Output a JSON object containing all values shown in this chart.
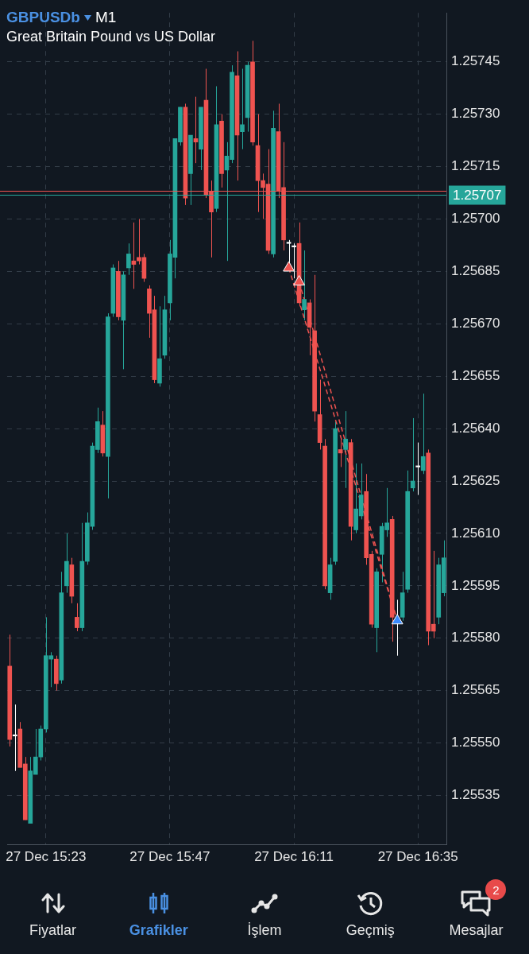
{
  "chart_data": {
    "type": "candlestick",
    "title": "GBPUSDb",
    "subtitle": "Great Britain Pound vs US Dollar",
    "annotations": [
      "M1",
      "Fiyatlar",
      "Grafikler",
      "İşlem",
      "Geçmiş",
      "Mesajlar",
      "2"
    ],
    "categories": [
      null,
      null,
      null,
      null,
      null,
      null,
      null,
      "27 Dec 15:23",
      null,
      null,
      null,
      null,
      null,
      null,
      null,
      null,
      null,
      null,
      null,
      null,
      null,
      null,
      null,
      null,
      null,
      null,
      null,
      null,
      null,
      null,
      null,
      "27 Dec 15:47",
      null,
      null,
      null,
      null,
      null,
      null,
      null,
      null,
      null,
      null,
      null,
      null,
      null,
      null,
      null,
      null,
      null,
      null,
      null,
      null,
      null,
      null,
      null,
      "27 Dec 16:11",
      null,
      null,
      null,
      null,
      null,
      null,
      null,
      null,
      null,
      null,
      null,
      null,
      null,
      null,
      null,
      null,
      null,
      null,
      null,
      null,
      null,
      null,
      null,
      "27 Dec 16:35",
      null,
      null,
      null,
      null,
      null
    ],
    "ohlc": [
      [
        1.25572,
        1.25581,
        1.25549,
        1.25551
      ],
      [
        1.25552,
        1.25561,
        1.25542,
        1.25552
      ],
      [
        1.25554,
        1.25556,
        1.25543,
        1.25543
      ],
      [
        1.25544,
        1.25546,
        1.25528,
        1.25528
      ],
      [
        1.25527,
        1.25546,
        1.25527,
        1.25542
      ],
      [
        1.25541,
        1.25554,
        1.25541,
        1.25546
      ],
      [
        1.25546,
        1.25555,
        1.25545,
        1.25554
      ],
      [
        1.25554,
        1.25586,
        1.25553,
        1.25575
      ],
      [
        1.25574,
        1.25576,
        1.25566,
        1.25575
      ],
      [
        1.25574,
        1.25575,
        1.25565,
        1.25567
      ],
      [
        1.25568,
        1.25599,
        1.25567,
        1.25593
      ],
      [
        1.25595,
        1.2561,
        1.25593,
        1.25602
      ],
      [
        1.25601,
        1.25603,
        1.2559,
        1.25592
      ],
      [
        1.25586,
        1.2559,
        1.25582,
        1.25583
      ],
      [
        1.25583,
        1.25613,
        1.25582,
        1.25602
      ],
      [
        1.25602,
        1.25616,
        1.25601,
        1.25613
      ],
      [
        1.25612,
        1.25636,
        1.25611,
        1.25635
      ],
      [
        1.25634,
        1.25646,
        1.25633,
        1.25642
      ],
      [
        1.25641,
        1.25645,
        1.25632,
        1.25633
      ],
      [
        1.25632,
        1.25673,
        1.2562,
        1.25672
      ],
      [
        1.25673,
        1.25687,
        1.25672,
        1.25686
      ],
      [
        1.25685,
        1.25688,
        1.25671,
        1.25672
      ],
      [
        1.25671,
        1.25685,
        1.25657,
        1.25684
      ],
      [
        1.25686,
        1.25693,
        1.25684,
        1.2569
      ],
      [
        1.25688,
        1.25699,
        1.2568,
        1.25687
      ],
      [
        1.25689,
        1.257,
        1.25687,
        1.25688
      ],
      [
        1.25689,
        1.2569,
        1.25682,
        1.25683
      ],
      [
        1.2568,
        1.25681,
        1.25666,
        1.25673
      ],
      [
        1.25674,
        1.25678,
        1.25653,
        1.25654
      ],
      [
        1.25653,
        1.25675,
        1.25652,
        1.2566
      ],
      [
        1.25661,
        1.25678,
        1.2566,
        1.25674
      ],
      [
        1.25676,
        1.25694,
        1.25671,
        1.2569
      ],
      [
        1.25689,
        1.25723,
        1.25683,
        1.25723
      ],
      [
        1.25722,
        1.25732,
        1.25721,
        1.25732
      ],
      [
        1.25732,
        1.25733,
        1.25704,
        1.25706
      ],
      [
        1.25713,
        1.25724,
        1.25704,
        1.25724
      ],
      [
        1.25723,
        1.25735,
        1.25716,
        1.25722
      ],
      [
        1.2572,
        1.25732,
        1.25714,
        1.25732
      ],
      [
        1.25734,
        1.25743,
        1.25706,
        1.25707
      ],
      [
        1.25708,
        1.25711,
        1.25689,
        1.25702
      ],
      [
        1.25703,
        1.25738,
        1.25702,
        1.25727
      ],
      [
        1.25728,
        1.2573,
        1.25709,
        1.25713
      ],
      [
        1.25714,
        1.25722,
        1.25688,
        1.25718
      ],
      [
        1.25717,
        1.25744,
        1.25716,
        1.25742
      ],
      [
        1.25741,
        1.25748,
        1.25711,
        1.25724
      ],
      [
        1.25725,
        1.25743,
        1.2572,
        1.25727
      ],
      [
        1.25729,
        1.25745,
        1.25725,
        1.25744
      ],
      [
        1.25745,
        1.25751,
        1.25721,
        1.25722
      ],
      [
        1.25721,
        1.2573,
        1.25702,
        1.25711
      ],
      [
        1.25711,
        1.25713,
        1.257,
        1.25709
      ],
      [
        1.2571,
        1.2572,
        1.2569,
        1.25691
      ],
      [
        1.2569,
        1.25731,
        1.25689,
        1.25726
      ],
      [
        1.25725,
        1.25733,
        1.25706,
        1.25708
      ],
      [
        1.25709,
        1.25722,
        1.25691,
        1.25694
      ],
      [
        1.25693,
        1.25694,
        1.25687,
        1.25693
      ],
      [
        1.25692,
        1.25693,
        1.25683,
        1.25692
      ],
      [
        1.25693,
        1.25699,
        1.25675,
        1.25676
      ],
      [
        1.25674,
        1.25691,
        1.25671,
        1.25677
      ],
      [
        1.25676,
        1.25677,
        1.25661,
        1.25669
      ],
      [
        1.25668,
        1.25684,
        1.25642,
        1.25645
      ],
      [
        1.25644,
        1.25654,
        1.25634,
        1.25636
      ],
      [
        1.25635,
        1.25637,
        1.25594,
        1.25595
      ],
      [
        1.25593,
        1.25603,
        1.25591,
        1.25601
      ],
      [
        1.25602,
        1.25642,
        1.25601,
        1.2564
      ],
      [
        1.25634,
        1.25637,
        1.25629,
        1.25633
      ],
      [
        1.25634,
        1.25645,
        1.25623,
        1.25637
      ],
      [
        1.25636,
        1.25637,
        1.25608,
        1.25612
      ],
      [
        1.25611,
        1.2563,
        1.2561,
        1.25617
      ],
      [
        1.25615,
        1.2563,
        1.25614,
        1.25621
      ],
      [
        1.25622,
        1.25627,
        1.25601,
        1.25603
      ],
      [
        1.25604,
        1.25605,
        1.25583,
        1.25584
      ],
      [
        1.25583,
        1.256,
        1.25576,
        1.25599
      ],
      [
        1.25604,
        1.25613,
        1.25596,
        1.25612
      ],
      [
        1.25611,
        1.25623,
        1.25609,
        1.25613
      ],
      [
        1.25614,
        1.25615,
        1.25579,
        1.25586
      ],
      [
        1.25585,
        1.25591,
        1.25575,
        1.25585
      ],
      [
        1.25586,
        1.25599,
        1.25585,
        1.25593
      ],
      [
        1.25594,
        1.25628,
        1.25593,
        1.25622
      ],
      [
        1.25623,
        1.25643,
        1.25622,
        1.25625
      ],
      [
        1.25629,
        1.25636,
        1.25621,
        1.25629
      ],
      [
        1.25628,
        1.2565,
        1.25627,
        1.25632
      ],
      [
        1.25633,
        1.25634,
        1.25578,
        1.25582
      ],
      [
        1.25584,
        1.25605,
        1.2558,
        1.25582
      ],
      [
        1.25586,
        1.25603,
        1.25584,
        1.25601
      ],
      [
        1.25593,
        1.25608,
        1.25592,
        1.25603
      ]
    ],
    "colors": [
      "#ef5350",
      "#ffffff",
      "#ef5350",
      "#ef5350",
      "#26a69a",
      "#26a69a",
      "#26a69a",
      "#26a69a",
      "#26a69a",
      "#ef5350",
      "#26a69a",
      "#26a69a",
      "#ef5350",
      "#ef5350",
      "#26a69a",
      "#26a69a",
      "#26a69a",
      "#26a69a",
      "#ef5350",
      "#26a69a",
      "#26a69a",
      "#ef5350",
      "#26a69a",
      "#26a69a",
      "#ef5350",
      "#ef5350",
      "#ef5350",
      "#ef5350",
      "#ef5350",
      "#26a69a",
      "#26a69a",
      "#26a69a",
      "#26a69a",
      "#26a69a",
      "#ef5350",
      "#26a69a",
      "#ef5350",
      "#26a69a",
      "#ef5350",
      "#ef5350",
      "#26a69a",
      "#ef5350",
      "#26a69a",
      "#26a69a",
      "#ef5350",
      "#26a69a",
      "#26a69a",
      "#ef5350",
      "#ef5350",
      "#ef5350",
      "#ef5350",
      "#26a69a",
      "#ef5350",
      "#ef5350",
      "#ffffff",
      "#ffffff",
      "#ef5350",
      "#26a69a",
      "#ef5350",
      "#ef5350",
      "#ef5350",
      "#ef5350",
      "#26a69a",
      "#26a69a",
      "#ef5350",
      "#26a69a",
      "#ef5350",
      "#26a69a",
      "#26a69a",
      "#ef5350",
      "#ef5350",
      "#26a69a",
      "#26a69a",
      "#26a69a",
      "#ef5350",
      "#ffffff",
      "#26a69a",
      "#26a69a",
      "#26a69a",
      "#ffffff",
      "#26a69a",
      "#ef5350",
      "#ef5350",
      "#26a69a",
      "#26a69a"
    ],
    "series": [
      {
        "type": "line",
        "color": "#ef5350",
        "line_style": "dashed",
        "marker": "none",
        "values": [
          null,
          null,
          null,
          null,
          null,
          null,
          null,
          null,
          null,
          null,
          null,
          null,
          null,
          null,
          null,
          null,
          null,
          null,
          null,
          null,
          null,
          null,
          null,
          null,
          null,
          null,
          null,
          null,
          null,
          null,
          null,
          null,
          null,
          null,
          null,
          null,
          null,
          null,
          null,
          null,
          null,
          null,
          null,
          null,
          null,
          null,
          null,
          null,
          null,
          null,
          null,
          null,
          null,
          null,
          1.25686,
          null,
          null,
          null,
          null,
          null,
          null,
          null,
          null,
          null,
          null,
          null,
          null,
          null,
          null,
          null,
          null,
          null,
          null,
          null,
          null,
          1.25585,
          null,
          null,
          null,
          null,
          null,
          null,
          null,
          null,
          null
        ]
      },
      {
        "type": "line",
        "color": "#ef5350",
        "line_style": "dashed",
        "marker": "none",
        "values": [
          null,
          null,
          null,
          null,
          null,
          null,
          null,
          null,
          null,
          null,
          null,
          null,
          null,
          null,
          null,
          null,
          null,
          null,
          null,
          null,
          null,
          null,
          null,
          null,
          null,
          null,
          null,
          null,
          null,
          null,
          null,
          null,
          null,
          null,
          null,
          null,
          null,
          null,
          null,
          null,
          null,
          null,
          null,
          null,
          null,
          null,
          null,
          null,
          null,
          null,
          null,
          null,
          null,
          null,
          null,
          null,
          1.25682,
          null,
          null,
          null,
          null,
          null,
          null,
          null,
          null,
          null,
          null,
          null,
          null,
          null,
          null,
          null,
          null,
          null,
          null,
          1.25585,
          null,
          null,
          null,
          null,
          null,
          null,
          null,
          null,
          null
        ]
      },
      {
        "type": "scatter",
        "color": "#ef5350",
        "marker": "triangle",
        "values": [
          null,
          null,
          null,
          null,
          null,
          null,
          null,
          null,
          null,
          null,
          null,
          null,
          null,
          null,
          null,
          null,
          null,
          null,
          null,
          null,
          null,
          null,
          null,
          null,
          null,
          null,
          null,
          null,
          null,
          null,
          null,
          null,
          null,
          null,
          null,
          null,
          null,
          null,
          null,
          null,
          null,
          null,
          null,
          null,
          null,
          null,
          null,
          null,
          null,
          null,
          null,
          null,
          null,
          null,
          1.25686,
          null,
          1.25682,
          null,
          null,
          null,
          null,
          null,
          null,
          null,
          null,
          null,
          null,
          null,
          null,
          null,
          null,
          null,
          null,
          null,
          null,
          null,
          null,
          null,
          null,
          null,
          null,
          null,
          null,
          null,
          null
        ]
      },
      {
        "type": "scatter",
        "color": "#3d8bfd",
        "marker": "triangle",
        "values": [
          null,
          null,
          null,
          null,
          null,
          null,
          null,
          null,
          null,
          null,
          null,
          null,
          null,
          null,
          null,
          null,
          null,
          null,
          null,
          null,
          null,
          null,
          null,
          null,
          null,
          null,
          null,
          null,
          null,
          null,
          null,
          null,
          null,
          null,
          null,
          null,
          null,
          null,
          null,
          null,
          null,
          null,
          null,
          null,
          null,
          null,
          null,
          null,
          null,
          null,
          null,
          null,
          null,
          null,
          null,
          null,
          null,
          null,
          null,
          null,
          null,
          null,
          null,
          null,
          null,
          null,
          null,
          null,
          null,
          null,
          null,
          null,
          null,
          null,
          null,
          1.25585,
          null,
          null,
          null,
          null,
          null,
          null,
          null,
          null,
          null
        ]
      }
    ],
    "ref_lines": [
      {
        "axis": "y",
        "value": 1.25708,
        "color": "#ef5350"
      },
      {
        "axis": "y",
        "value": 1.25707,
        "label": "1.25707",
        "color": "#26a69a"
      }
    ],
    "ylim": [
      1.25521,
      1.25759
    ],
    "yticks": [
      1.25535,
      {
        "value": 1.2555,
        "label": "1.25550"
      },
      1.25565,
      {
        "value": 1.2558,
        "label": "1.25580"
      },
      1.25595,
      {
        "value": 1.2561,
        "label": "1.25610"
      },
      1.25625,
      {
        "value": 1.2564,
        "label": "1.25640"
      },
      1.25655,
      {
        "value": 1.2567,
        "label": "1.25670"
      },
      1.25685,
      {
        "value": 1.257,
        "label": "1.25700"
      },
      1.25715,
      {
        "value": 1.2573,
        "label": "1.25730"
      },
      1.25745
    ],
    "grid": true
  }
}
